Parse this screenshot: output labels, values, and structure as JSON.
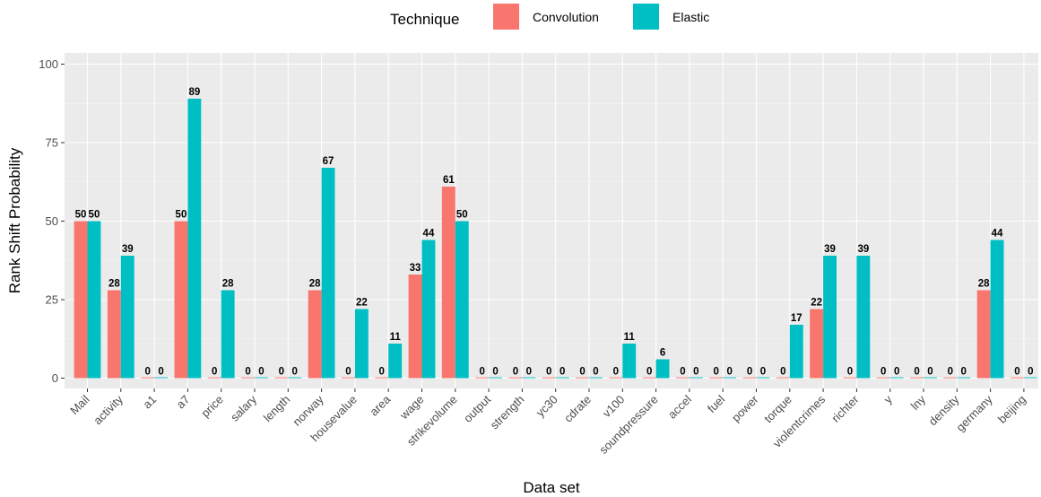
{
  "legend": {
    "title": "Technique",
    "placement": "top"
  },
  "chart_data": {
    "type": "bar",
    "xlabel": "Data set",
    "ylabel": "Rank Shift Probability",
    "ylim": [
      0,
      100
    ],
    "yticks": [
      "0",
      "25",
      "50",
      "75",
      "100"
    ],
    "grid": true,
    "categories": [
      "Mail",
      "activity",
      "a1",
      "a7",
      "price",
      "salary",
      "length",
      "norway",
      "housevalue",
      "area",
      "wage",
      "strikevolume",
      "output",
      "strength",
      "yc30",
      "cdrate",
      "v100",
      "soundpressure",
      "accel",
      "fuel",
      "power",
      "torque",
      "violentcrimes",
      "richter",
      "y",
      "lny",
      "density",
      "germany",
      "beijing"
    ],
    "series": [
      {
        "name": "Convolution",
        "color": "#F8766D",
        "values": [
          50,
          28,
          0,
          50,
          0,
          0,
          0,
          28,
          0,
          0,
          33,
          61,
          0,
          0,
          0,
          0,
          0,
          0,
          0,
          0,
          0,
          0,
          22,
          0,
          0,
          0,
          0,
          28,
          0
        ]
      },
      {
        "name": "Elastic",
        "color": "#00BFC4",
        "values": [
          50,
          39,
          0,
          89,
          28,
          0,
          0,
          67,
          22,
          11,
          44,
          50,
          0,
          0,
          0,
          0,
          11,
          6,
          0,
          0,
          0,
          17,
          39,
          39,
          0,
          0,
          0,
          44,
          0
        ]
      }
    ]
  }
}
